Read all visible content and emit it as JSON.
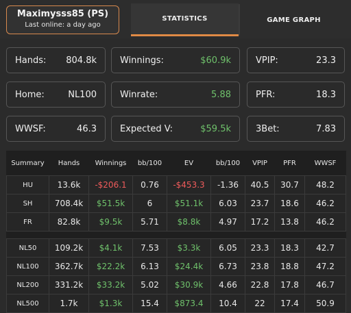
{
  "player": {
    "name": "Maximysss85 (PS)",
    "last_online": "Last online: a day ago"
  },
  "tabs": {
    "statistics": "STATISTICS",
    "game_graph": "GAME GRAPH"
  },
  "cards": {
    "hands": {
      "label": "Hands:",
      "value": "804.8k"
    },
    "winnings": {
      "label": "Winnings:",
      "value": "$60.9k"
    },
    "vpip": {
      "label": "VPIP:",
      "value": "23.3"
    },
    "home": {
      "label": "Home:",
      "value": "NL100"
    },
    "winrate": {
      "label": "Winrate:",
      "value": "5.88"
    },
    "pfr": {
      "label": "PFR:",
      "value": "18.3"
    },
    "wwsf": {
      "label": "WWSF:",
      "value": "46.3"
    },
    "expected": {
      "label": "Expected V:",
      "value": "$59.5k"
    },
    "threebet": {
      "label": "3Bet:",
      "value": "7.83"
    }
  },
  "table": {
    "headers": [
      "Summary",
      "Hands",
      "Winnings",
      "bb/100",
      "EV",
      "bb/100",
      "VPIP",
      "PFR",
      "WWSF"
    ],
    "group1": [
      [
        "HU",
        "13.6k",
        "-$206.1",
        "0.76",
        "-$453.3",
        "-1.36",
        "40.5",
        "30.7",
        "48.2"
      ],
      [
        "SH",
        "708.4k",
        "$51.5k",
        "6",
        "$51.1k",
        "6.03",
        "23.7",
        "18.6",
        "46.2"
      ],
      [
        "FR",
        "82.8k",
        "$9.5k",
        "5.71",
        "$8.8k",
        "4.97",
        "17.2",
        "13.8",
        "46.2"
      ]
    ],
    "group2": [
      [
        "NL50",
        "109.2k",
        "$4.1k",
        "7.53",
        "$3.3k",
        "6.05",
        "23.3",
        "18.3",
        "42.7"
      ],
      [
        "NL100",
        "362.7k",
        "$22.2k",
        "6.13",
        "$24.4k",
        "6.73",
        "23.8",
        "18.8",
        "47.2"
      ],
      [
        "NL200",
        "331.2k",
        "$33.2k",
        "5.02",
        "$30.9k",
        "4.66",
        "22.8",
        "17.8",
        "46.7"
      ],
      [
        "NL500",
        "1.7k",
        "$1.3k",
        "15.4",
        "$873.4",
        "10.4",
        "22",
        "17.4",
        "50.9"
      ]
    ]
  },
  "colors": {
    "accent": "#e08a45",
    "positive": "#6fc16b",
    "negative": "#ef5b5b"
  }
}
